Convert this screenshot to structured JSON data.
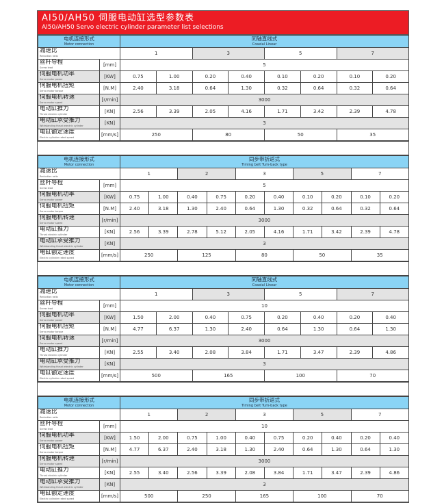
{
  "title": {
    "cn": "AI50/AH50 伺服电动缸选型参数表",
    "en": "AI50/AH50 Servo electric cylinder parameter list selections"
  },
  "colors": {
    "title_bg": "#ec1c24",
    "header_bg": "#8ad4f5",
    "shade": "#e3e3e3"
  },
  "row_labels": {
    "connection": {
      "cn": "电机连接形式",
      "en": "Motor connection"
    },
    "ratio": {
      "cn": "减速比",
      "en": "Reduction ratio"
    },
    "lead": {
      "cn": "丝杆导程",
      "en": "Screw lead",
      "unit": "[mm]"
    },
    "power": {
      "cn": "伺服电机功率",
      "en": "Servo motor power",
      "unit": "[KW]"
    },
    "torque": {
      "cn": "伺服电机扭矩",
      "en": "Servo motor torque",
      "unit": "[N.M]"
    },
    "speed": {
      "cn": "伺服电机转速",
      "en": "Servo motor speed",
      "unit": "[r/min]"
    },
    "thrust": {
      "cn": "电动缸推力",
      "en": "Thrust electric cylinder",
      "unit": "[KN]"
    },
    "withstand": {
      "cn": "电动缸承受推力",
      "en": "Withstanding thrust electric cylinder",
      "unit": "[KN]"
    },
    "rated": {
      "cn": "电缸额定速度",
      "en": "Electric cylinder rated speed",
      "unit": "[mm/s]"
    }
  },
  "blocks": [
    {
      "type": {
        "cn": "同轴直线式",
        "en": "Coaxial Linear"
      },
      "ratios": [
        "1",
        "3",
        "5",
        "7"
      ],
      "lead": "5",
      "power": [
        "0.75",
        "1.00",
        "0.20",
        "0.40",
        "0.10",
        "0.20",
        "0.10",
        "0.20"
      ],
      "torque": [
        "2.40",
        "3.18",
        "0.64",
        "1.30",
        "0.32",
        "0.64",
        "0.32",
        "0.64"
      ],
      "speed": "3000",
      "thrust": [
        "2.56",
        "3.39",
        "2.05",
        "4.16",
        "1.71",
        "3.42",
        "2.39",
        "4.78"
      ],
      "withstand": "3",
      "rated": [
        "250",
        "80",
        "50",
        "35"
      ]
    },
    {
      "type": {
        "cn": "同步带折返式",
        "en": "Timing belt Turn-back type"
      },
      "ratios": [
        "1",
        "2",
        "3",
        "5",
        "7"
      ],
      "lead": "5",
      "power": [
        "0.75",
        "1.00",
        "0.40",
        "0.75",
        "0.20",
        "0.40",
        "0.10",
        "0.20",
        "0.10",
        "0.20"
      ],
      "torque": [
        "2.40",
        "3.18",
        "1.30",
        "2.40",
        "0.64",
        "1.30",
        "0.32",
        "0.64",
        "0.32",
        "0.64"
      ],
      "speed": "3000",
      "thrust": [
        "2.56",
        "3.39",
        "2.78",
        "5.12",
        "2.05",
        "4.16",
        "1.71",
        "3.42",
        "2.39",
        "4.78"
      ],
      "withstand": "3",
      "rated": [
        "250",
        "125",
        "80",
        "50",
        "35"
      ]
    },
    {
      "type": {
        "cn": "同轴直线式",
        "en": "Coaxial Linear"
      },
      "ratios": [
        "1",
        "3",
        "5",
        "7"
      ],
      "lead": "10",
      "power": [
        "1.50",
        "2.00",
        "0.40",
        "0.75",
        "0.20",
        "0.40",
        "0.20",
        "0.40"
      ],
      "torque": [
        "4.77",
        "6.37",
        "1.30",
        "2.40",
        "0.64",
        "1.30",
        "0.64",
        "1.30"
      ],
      "speed": "3000",
      "thrust": [
        "2.55",
        "3.40",
        "2.08",
        "3.84",
        "1.71",
        "3.47",
        "2.39",
        "4.86"
      ],
      "withstand": "3",
      "rated": [
        "500",
        "165",
        "100",
        "70"
      ]
    },
    {
      "type": {
        "cn": "同步带折返式",
        "en": "Timing belt Turn-back type"
      },
      "ratios": [
        "1",
        "2",
        "3",
        "5",
        "7"
      ],
      "lead": "10",
      "power": [
        "1.50",
        "2.00",
        "0.75",
        "1.00",
        "0.40",
        "0.75",
        "0.20",
        "0.40",
        "0.20",
        "0.40"
      ],
      "torque": [
        "4.77",
        "6.37",
        "2.40",
        "3.18",
        "1.30",
        "2.40",
        "0.64",
        "1.30",
        "0.64",
        "1.30"
      ],
      "speed": "3000",
      "thrust": [
        "2.55",
        "3.40",
        "2.56",
        "3.39",
        "2.08",
        "3.84",
        "1.71",
        "3.47",
        "2.39",
        "4.86"
      ],
      "withstand": "3",
      "rated": [
        "500",
        "250",
        "165",
        "100",
        "70"
      ]
    }
  ]
}
